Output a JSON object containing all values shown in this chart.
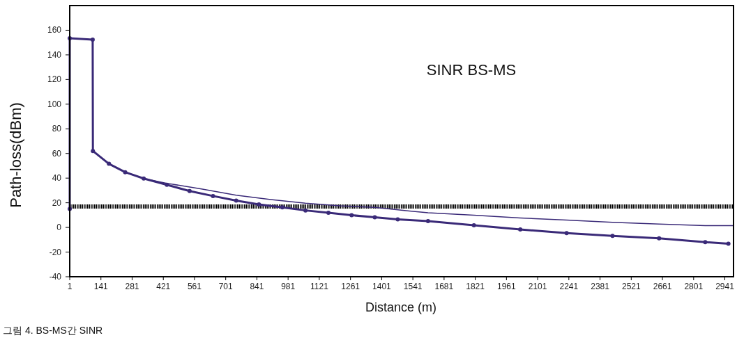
{
  "chart_data": {
    "type": "line",
    "title": "SINR BS-MS",
    "xlabel": "Distance (m)",
    "ylabel": "Path-loss(dBm)",
    "annotations": [
      "그림 4. BS-MS간 SINR"
    ],
    "xlim": [
      1,
      2980
    ],
    "xticks": [
      1,
      141,
      281,
      421,
      561,
      701,
      841,
      981,
      1121,
      1261,
      1401,
      1541,
      1681,
      1821,
      1961,
      2101,
      2241,
      2381,
      2521,
      2661,
      2801,
      2941
    ],
    "ylim": [
      -40,
      180
    ],
    "yticks": [
      -40,
      -20,
      0,
      20,
      40,
      60,
      80,
      100,
      120,
      140,
      160
    ],
    "ref_lines": [
      {
        "axis": "y",
        "value": 17,
        "color": "#000000",
        "line_style": "dotted"
      }
    ],
    "series": [
      {
        "color": "#3a2a78",
        "marker": "circle",
        "x": [
          1,
          1,
          104,
          105,
          177,
          250,
          333,
          437,
          539,
          644,
          748,
          850,
          955,
          1059,
          1162,
          1266,
          1370,
          1473,
          1609,
          1815,
          2023,
          2231,
          2437,
          2646,
          2853,
          2957
        ],
        "values": [
          15,
          153.5,
          152.3,
          62,
          51.6,
          44.8,
          39.7,
          34.6,
          29.5,
          25.5,
          21.8,
          18.7,
          16.3,
          13.8,
          11.9,
          9.9,
          8.2,
          6.5,
          5.1,
          1.8,
          -1.7,
          -4.6,
          -6.8,
          -8.9,
          -11.9,
          -13.2
        ]
      },
      {
        "color": "#3a2a78",
        "marker": "none",
        "x": [
          1,
          1,
          104,
          105,
          177,
          250,
          333,
          437,
          592,
          748,
          903,
          1059,
          1214,
          1370,
          1526,
          1609,
          1815,
          2023,
          2231,
          2437,
          2646,
          2853,
          2978
        ],
        "values": [
          15,
          153.5,
          152.3,
          62,
          51.6,
          44.8,
          39.7,
          35.8,
          31.2,
          26.1,
          22.6,
          19.6,
          17.5,
          16.3,
          13.3,
          11.9,
          9.9,
          7.7,
          6,
          4.2,
          2.7,
          1.4,
          1.4
        ]
      }
    ]
  }
}
